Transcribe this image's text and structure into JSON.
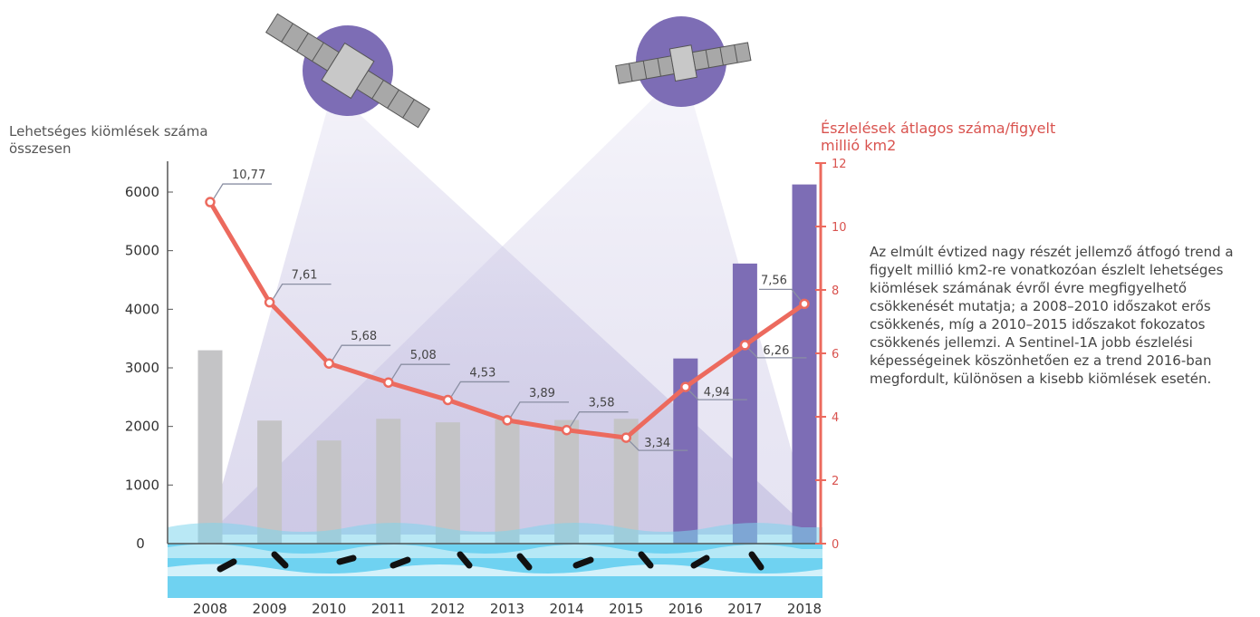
{
  "chart_data": {
    "type": "bar",
    "categories": [
      "2008",
      "2009",
      "2010",
      "2011",
      "2012",
      "2013",
      "2014",
      "2015",
      "2016",
      "2017",
      "2018"
    ],
    "series": [
      {
        "type": "bar",
        "axis": "left",
        "values": [
          3300,
          2100,
          1760,
          2130,
          2070,
          2120,
          2110,
          2130,
          3160,
          4780,
          6130
        ],
        "colors": [
          "#c4c4c6",
          "#c4c4c6",
          "#c4c4c6",
          "#c4c4c6",
          "#c4c4c6",
          "#c4c4c6",
          "#c4c4c6",
          "#c4c4c6",
          "#7d6db5",
          "#7d6db5",
          "#7d6db5"
        ]
      },
      {
        "type": "line",
        "axis": "right",
        "values": [
          10.77,
          7.61,
          5.68,
          5.08,
          4.53,
          3.89,
          3.58,
          3.34,
          4.94,
          6.26,
          7.56
        ],
        "labels": [
          "10,77",
          "7,61",
          "5,68",
          "5,08",
          "4,53",
          "3,89",
          "3,58",
          "3,34",
          "4,94",
          "6,26",
          "7,56"
        ],
        "color": "#ec6a5e"
      }
    ],
    "left_axis": {
      "title": "Lehetséges kiömlések száma összesen",
      "range": [
        0,
        6500
      ],
      "ticks": [
        0,
        1000,
        2000,
        3000,
        4000,
        5000,
        6000
      ],
      "tick_labels": [
        "0",
        "1000",
        "2000",
        "3000",
        "4000",
        "5000",
        "6000"
      ]
    },
    "right_axis": {
      "title": "Észlelések átlagos száma/figyelt millió km2",
      "range": [
        0,
        12
      ],
      "ticks": [
        0,
        2,
        4,
        6,
        8,
        10,
        12
      ],
      "tick_labels": [
        "0",
        "2",
        "4",
        "6",
        "8",
        "10",
        "12"
      ],
      "color": "#d9534f"
    },
    "annotation": "Az elmúlt évtized nagy részét jellemző átfogó trend a figyelt millió km2-re vonatkozóan észlelt lehetséges kiömlések számának évről évre megfigyelhető csökkenését mutatja; a 2008–2010 időszakot erős csökkenés, míg a 2010–2015 időszakot fokozatos csökkenés jellemzi. A Sentinel-1A jobb észlelési képességeinek köszönhetően ez a trend 2016-ban megfordult, különösen a kisebb kiömlések esetén.",
    "grid": false,
    "legend": "none"
  }
}
